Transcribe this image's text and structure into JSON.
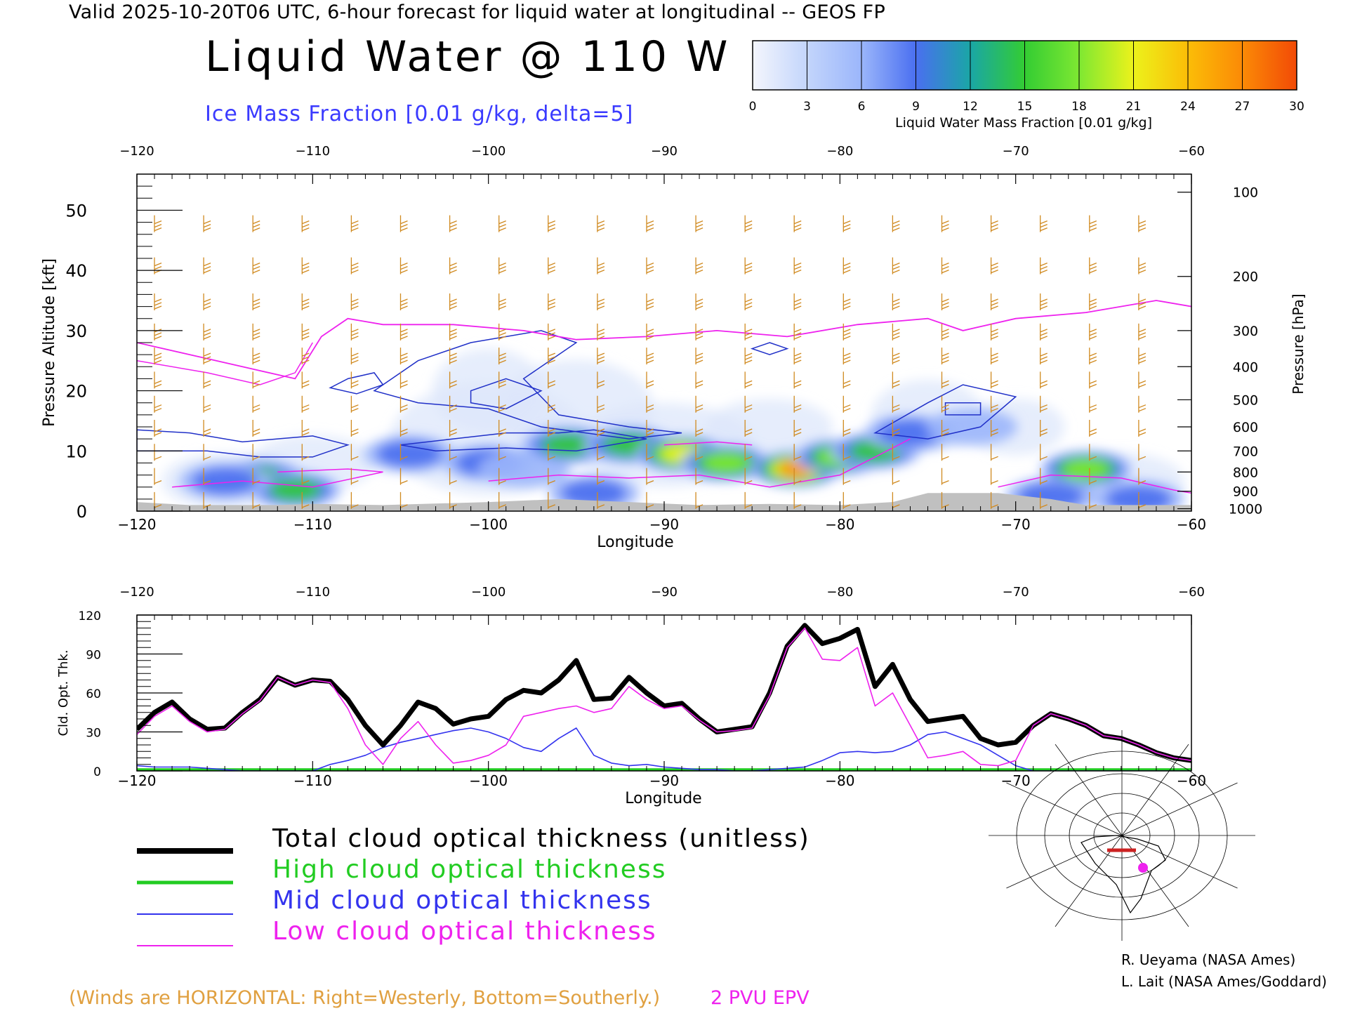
{
  "header": {
    "valid_line": "Valid 2025-10-20T06 UTC, 6-hour forecast for liquid water at longitudinal -- GEOS FP",
    "title": "Liquid Water @ 110 W",
    "subtitle": "Ice Mass Fraction [0.01 g/kg, delta=5]"
  },
  "colorbar": {
    "label": "Liquid Water Mass Fraction [0.01 g/kg]",
    "ticks": [
      "0",
      "3",
      "6",
      "9",
      "12",
      "15",
      "18",
      "21",
      "24",
      "27",
      "30"
    ],
    "colors": [
      "#f4f6fd",
      "#c3d5fb",
      "#9bb6fb",
      "#4a6ff0",
      "#1aa6a6",
      "#33cc33",
      "#7ee832",
      "#ecf21b",
      "#fbbd07",
      "#fb8a06",
      "#f24a06"
    ]
  },
  "chart_data": [
    {
      "type": "heatmap",
      "title": "Liquid Water @ 110 W",
      "subtitle": "Ice Mass Fraction [0.01 g/kg, delta=5]",
      "xlabel": "Longitude",
      "ylabel": "Pressure Altitude [kft]",
      "ylabel_right": "Pressure [hPa]",
      "xlim": [
        -120,
        -60
      ],
      "ylim": [
        0,
        56
      ],
      "x_ticks": [
        "−120",
        "−110",
        "−100",
        "−90",
        "−80",
        "−70",
        "−60"
      ],
      "y_ticks": [
        "0",
        "10",
        "20",
        "30",
        "40",
        "50"
      ],
      "pressure_ticks": [
        "100",
        "200",
        "300",
        "400",
        "500",
        "600",
        "700",
        "800",
        "900",
        "1000"
      ],
      "grid": false,
      "colorbar_range": [
        0,
        30
      ],
      "liquid_water_blobs": [
        {
          "lon": -113,
          "alt": 5.5,
          "value": 15
        },
        {
          "lon": -111,
          "alt": 3.5,
          "value": 14
        },
        {
          "lon": -115,
          "alt": 5,
          "value": 10
        },
        {
          "lon": -104.5,
          "alt": 9.5,
          "value": 12
        },
        {
          "lon": -100,
          "alt": 8,
          "value": 11
        },
        {
          "lon": -98,
          "alt": 7,
          "value": 9
        },
        {
          "lon": -95.5,
          "alt": 11,
          "value": 15
        },
        {
          "lon": -92,
          "alt": 11,
          "value": 14
        },
        {
          "lon": -89,
          "alt": 9.5,
          "value": 22
        },
        {
          "lon": -86.5,
          "alt": 8,
          "value": 18
        },
        {
          "lon": -82.5,
          "alt": 7,
          "value": 27
        },
        {
          "lon": -80,
          "alt": 9,
          "value": 20
        },
        {
          "lon": -78,
          "alt": 10,
          "value": 17
        },
        {
          "lon": -76,
          "alt": 13,
          "value": 13
        },
        {
          "lon": -72.5,
          "alt": 14,
          "value": 8
        },
        {
          "lon": -66,
          "alt": 7,
          "value": 18
        },
        {
          "lon": -63,
          "alt": 2,
          "value": 12
        },
        {
          "lon": -68,
          "alt": 2.5,
          "value": 13
        },
        {
          "lon": -94,
          "alt": 3,
          "value": 12
        }
      ],
      "epv_2pvu_line": [
        [
          -120,
          28
        ],
        [
          -117,
          26
        ],
        [
          -114,
          24
        ],
        [
          -111,
          22
        ],
        [
          -109.5,
          29
        ],
        [
          -108,
          32
        ],
        [
          -106,
          31
        ],
        [
          -102,
          31
        ],
        [
          -98,
          30
        ],
        [
          -95,
          28.5
        ],
        [
          -91,
          29
        ],
        [
          -87,
          30
        ],
        [
          -83,
          29
        ],
        [
          -79,
          31
        ],
        [
          -75,
          32
        ],
        [
          -73,
          30
        ],
        [
          -70,
          32
        ],
        [
          -66,
          33
        ],
        [
          -62,
          35
        ],
        [
          -60,
          34
        ]
      ]
    },
    {
      "type": "line",
      "xlabel": "Longitude",
      "ylabel": "Cld. Opt. Thk.",
      "xlim": [
        -120,
        -60
      ],
      "ylim": [
        0,
        120
      ],
      "x_ticks": [
        "−120",
        "−110",
        "−100",
        "−90",
        "−80",
        "−70",
        "−60"
      ],
      "y_ticks": [
        "0",
        "30",
        "60",
        "90",
        "120"
      ],
      "x": [
        -120,
        -119,
        -118,
        -117,
        -116,
        -115,
        -114,
        -113,
        -112,
        -111,
        -110,
        -109,
        -108,
        -107,
        -106,
        -105,
        -104,
        -103,
        -102,
        -101,
        -100,
        -99,
        -98,
        -97,
        -96,
        -95,
        -94,
        -93,
        -92,
        -91,
        -90,
        -89,
        -88,
        -87,
        -86,
        -85,
        -84,
        -83,
        -82,
        -81,
        -80,
        -79,
        -78,
        -77,
        -76,
        -75,
        -74,
        -73,
        -72,
        -71,
        -70,
        -69,
        -68,
        -67,
        -66,
        -65,
        -64,
        -63,
        -62,
        -61,
        -60
      ],
      "series": [
        {
          "name": "Total cloud optical thickness (unitless)",
          "color": "#000000",
          "values": [
            32,
            45,
            53,
            40,
            32,
            33,
            45,
            55,
            72,
            66,
            70,
            69,
            55,
            35,
            20,
            35,
            53,
            48,
            36,
            40,
            42,
            55,
            62,
            60,
            70,
            85,
            55,
            56,
            72,
            60,
            50,
            52,
            40,
            30,
            32,
            34,
            60,
            96,
            112,
            98,
            102,
            109,
            65,
            82,
            55,
            38,
            40,
            42,
            25,
            20,
            22,
            35,
            44,
            40,
            35,
            27,
            25,
            20,
            14,
            10,
            8
          ]
        },
        {
          "name": "High cloud optical thickness",
          "color": "#22cc22",
          "values": [
            1,
            1,
            1,
            1,
            1,
            1,
            1,
            1,
            1,
            1,
            1,
            1,
            1,
            1,
            1,
            1,
            1,
            1,
            1,
            1,
            1,
            1,
            1,
            1,
            1,
            1,
            1,
            1,
            1,
            1,
            1,
            1,
            1,
            1,
            1,
            1,
            1,
            1,
            1,
            1,
            1,
            1,
            1,
            1,
            1,
            1,
            1,
            1,
            1,
            1,
            1,
            1,
            1,
            1,
            1,
            1,
            1,
            1,
            1,
            1,
            1
          ]
        },
        {
          "name": "Mid cloud optical thickness",
          "color": "#3333ee",
          "values": [
            4,
            3,
            3,
            3,
            2,
            1,
            0,
            0,
            0,
            0,
            0,
            5,
            8,
            12,
            18,
            22,
            25,
            28,
            31,
            33,
            30,
            25,
            18,
            15,
            25,
            33,
            12,
            6,
            4,
            5,
            3,
            2,
            1,
            1,
            0,
            0,
            1,
            2,
            3,
            8,
            14,
            15,
            14,
            15,
            20,
            28,
            30,
            25,
            20,
            12,
            4,
            0,
            0,
            0,
            0,
            0,
            0,
            0,
            0,
            0,
            0
          ]
        },
        {
          "name": "Low cloud optical thickness",
          "color": "#ee22ee",
          "values": [
            28,
            42,
            50,
            38,
            30,
            32,
            44,
            54,
            72,
            66,
            70,
            68,
            48,
            20,
            5,
            25,
            38,
            20,
            6,
            8,
            12,
            20,
            42,
            45,
            48,
            50,
            45,
            48,
            65,
            55,
            48,
            50,
            39,
            30,
            31,
            33,
            58,
            95,
            110,
            86,
            85,
            95,
            50,
            60,
            35,
            10,
            12,
            15,
            5,
            4,
            8,
            35,
            44,
            40,
            35,
            27,
            25,
            20,
            14,
            10,
            8
          ]
        }
      ]
    }
  ],
  "legend": {
    "total": "Total cloud optical thickness (unitless)",
    "high": "High cloud optical thickness",
    "mid": "Mid cloud optical thickness",
    "low": "Low cloud optical thickness"
  },
  "notes": {
    "winds": "(Winds are HORIZONTAL: Right=Westerly, Bottom=Southerly.)",
    "epv": "2 PVU EPV"
  },
  "credits": {
    "line1": "R. Ueyama (NASA Ames)",
    "line2": "L. Lait (NASA Ames/Goddard)"
  },
  "colors": {
    "wind_barbs": "#d08a20",
    "terrain": "#c0c0c0",
    "epv": "#ee22ee",
    "ice_contour": "#2030c8"
  }
}
